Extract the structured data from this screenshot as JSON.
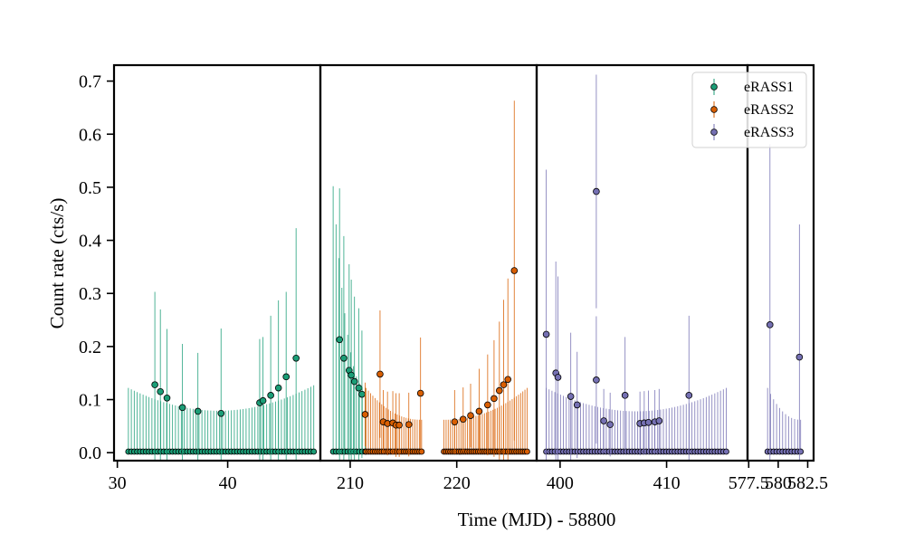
{
  "chart_data": {
    "type": "scatter",
    "title": "",
    "xlabel": "Time (MJD) - 58800",
    "ylabel": "Count rate (cts/s)",
    "ylim": [
      -0.015,
      0.73
    ],
    "yticks": [
      0.0,
      0.1,
      0.2,
      0.3,
      0.4,
      0.5,
      0.6,
      0.7
    ],
    "ytick_labels": [
      "0.0",
      "0.1",
      "0.2",
      "0.3",
      "0.4",
      "0.5",
      "0.6",
      "0.7"
    ],
    "grid": false,
    "legend_location": "top-right",
    "colors": {
      "eRASS1": "#1b9e77",
      "eRASS2": "#d95f02",
      "eRASS3": "#7570b3"
    },
    "panels": [
      {
        "xlim": [
          29.7,
          48.4
        ],
        "xticks": [
          30,
          40
        ],
        "xtick_labels": [
          "30",
          "40"
        ]
      },
      {
        "xlim": [
          207.2,
          227.5
        ],
        "xticks": [
          210,
          220
        ],
        "xtick_labels": [
          "210",
          "220"
        ]
      },
      {
        "xlim": [
          397.8,
          417.6
        ],
        "xticks": [
          400,
          410
        ],
        "xtick_labels": [
          "400",
          "410"
        ]
      },
      {
        "xlim": [
          577.4,
          583.0
        ],
        "xticks": [
          577.5,
          580,
          582.5
        ],
        "xtick_labels": [
          "577.5",
          "580",
          "582.5"
        ]
      }
    ],
    "series": [
      {
        "name": "eRASS1",
        "segments": [
          {
            "panel": 0,
            "x_start": 31.0,
            "x_end": 47.8,
            "n": 64,
            "y": 0.002,
            "err_start": 0.12,
            "err_min": 0.042,
            "err_end": 0.125
          },
          {
            "panel": 1,
            "x_start": 208.4,
            "x_end": 211.4,
            "n": 12,
            "y": 0.002,
            "err_start": 0.5,
            "err_min": 0.12,
            "err_end": 0.12
          }
        ],
        "points": [
          {
            "panel": 0,
            "x": 33.4,
            "y": 0.128,
            "err": 0.175
          },
          {
            "panel": 0,
            "x": 33.9,
            "y": 0.115,
            "err": 0.155
          },
          {
            "panel": 0,
            "x": 34.5,
            "y": 0.103,
            "err": 0.13
          },
          {
            "panel": 0,
            "x": 35.9,
            "y": 0.085,
            "err": 0.12
          },
          {
            "panel": 0,
            "x": 37.3,
            "y": 0.078,
            "err": 0.11
          },
          {
            "panel": 0,
            "x": 39.4,
            "y": 0.074,
            "err": 0.16
          },
          {
            "panel": 0,
            "x": 42.9,
            "y": 0.094,
            "err": 0.12
          },
          {
            "panel": 0,
            "x": 43.2,
            "y": 0.098,
            "err": 0.12
          },
          {
            "panel": 0,
            "x": 43.9,
            "y": 0.108,
            "err": 0.15
          },
          {
            "panel": 0,
            "x": 44.6,
            "y": 0.122,
            "err": 0.165
          },
          {
            "panel": 0,
            "x": 45.3,
            "y": 0.143,
            "err": 0.16
          },
          {
            "panel": 0,
            "x": 46.2,
            "y": 0.178,
            "err": 0.245
          },
          {
            "panel": 1,
            "x": 209.0,
            "y": 0.213,
            "err": 0.285
          },
          {
            "panel": 1,
            "x": 209.4,
            "y": 0.178,
            "err": 0.23
          },
          {
            "panel": 1,
            "x": 209.9,
            "y": 0.155,
            "err": 0.2
          },
          {
            "panel": 1,
            "x": 210.1,
            "y": 0.146,
            "err": 0.18
          },
          {
            "panel": 1,
            "x": 210.4,
            "y": 0.134,
            "err": 0.16
          },
          {
            "panel": 1,
            "x": 210.8,
            "y": 0.122,
            "err": 0.15
          },
          {
            "panel": 1,
            "x": 211.1,
            "y": 0.11,
            "err": 0.12
          }
        ]
      },
      {
        "name": "eRASS2",
        "segments": [
          {
            "panel": 1,
            "x_start": 211.5,
            "x_end": 216.7,
            "n": 26,
            "y": 0.002,
            "err_start": 0.12,
            "err_min": 0.06,
            "err_end": 0.06
          },
          {
            "panel": 1,
            "x_start": 218.8,
            "x_end": 226.6,
            "n": 40,
            "y": 0.002,
            "err_start": 0.06,
            "err_min": 0.06,
            "err_end": 0.12
          }
        ],
        "points": [
          {
            "panel": 1,
            "x": 211.4,
            "y": 0.072,
            "err": 0.06
          },
          {
            "panel": 1,
            "x": 212.8,
            "y": 0.148,
            "err": 0.12
          },
          {
            "panel": 1,
            "x": 213.1,
            "y": 0.058,
            "err": 0.06
          },
          {
            "panel": 1,
            "x": 213.5,
            "y": 0.055,
            "err": 0.06
          },
          {
            "panel": 1,
            "x": 214.0,
            "y": 0.056,
            "err": 0.06
          },
          {
            "panel": 1,
            "x": 214.3,
            "y": 0.052,
            "err": 0.06
          },
          {
            "panel": 1,
            "x": 214.6,
            "y": 0.052,
            "err": 0.06
          },
          {
            "panel": 1,
            "x": 215.5,
            "y": 0.053,
            "err": 0.06
          },
          {
            "panel": 1,
            "x": 216.6,
            "y": 0.112,
            "err": 0.105
          },
          {
            "panel": 1,
            "x": 219.8,
            "y": 0.058,
            "err": 0.06
          },
          {
            "panel": 1,
            "x": 220.6,
            "y": 0.063,
            "err": 0.06
          },
          {
            "panel": 1,
            "x": 221.3,
            "y": 0.07,
            "err": 0.06
          },
          {
            "panel": 1,
            "x": 222.1,
            "y": 0.078,
            "err": 0.08
          },
          {
            "panel": 1,
            "x": 222.9,
            "y": 0.09,
            "err": 0.095
          },
          {
            "panel": 1,
            "x": 223.5,
            "y": 0.102,
            "err": 0.11
          },
          {
            "panel": 1,
            "x": 224.0,
            "y": 0.117,
            "err": 0.13
          },
          {
            "panel": 1,
            "x": 224.4,
            "y": 0.128,
            "err": 0.16
          },
          {
            "panel": 1,
            "x": 224.8,
            "y": 0.138,
            "err": 0.19
          },
          {
            "panel": 1,
            "x": 225.4,
            "y": 0.343,
            "err": 0.32
          }
        ]
      },
      {
        "name": "eRASS3",
        "segments": [
          {
            "panel": 2,
            "x_start": 398.7,
            "x_end": 415.6,
            "n": 64,
            "y": 0.002,
            "err_start": 0.12,
            "err_min": 0.042,
            "err_end": 0.12
          },
          {
            "panel": 3,
            "x_start": 579.1,
            "x_end": 581.9,
            "n": 12,
            "y": 0.002,
            "err_start": 0.12,
            "err_min": 0.06,
            "err_end": 0.06
          }
        ],
        "points": [
          {
            "panel": 2,
            "x": 398.7,
            "y": 0.223,
            "err": 0.31
          },
          {
            "panel": 2,
            "x": 399.6,
            "y": 0.15,
            "err": 0.21
          },
          {
            "panel": 2,
            "x": 399.8,
            "y": 0.142,
            "err": 0.19
          },
          {
            "panel": 2,
            "x": 401.0,
            "y": 0.106,
            "err": 0.12
          },
          {
            "panel": 2,
            "x": 401.6,
            "y": 0.09,
            "err": 0.1
          },
          {
            "panel": 2,
            "x": 403.4,
            "y": 0.492,
            "err": 0.22
          },
          {
            "panel": 2,
            "x": 403.4,
            "y": 0.137,
            "err": 0.12
          },
          {
            "panel": 2,
            "x": 404.1,
            "y": 0.06,
            "err": 0.06
          },
          {
            "panel": 2,
            "x": 404.7,
            "y": 0.053,
            "err": 0.06
          },
          {
            "panel": 2,
            "x": 406.1,
            "y": 0.108,
            "err": 0.11
          },
          {
            "panel": 2,
            "x": 407.5,
            "y": 0.055,
            "err": 0.06
          },
          {
            "panel": 2,
            "x": 407.9,
            "y": 0.056,
            "err": 0.06
          },
          {
            "panel": 2,
            "x": 408.3,
            "y": 0.057,
            "err": 0.06
          },
          {
            "panel": 2,
            "x": 408.9,
            "y": 0.058,
            "err": 0.06
          },
          {
            "panel": 2,
            "x": 409.3,
            "y": 0.06,
            "err": 0.06
          },
          {
            "panel": 2,
            "x": 412.1,
            "y": 0.108,
            "err": 0.15
          },
          {
            "panel": 3,
            "x": 579.3,
            "y": 0.241,
            "err": 0.34
          },
          {
            "panel": 3,
            "x": 581.8,
            "y": 0.18,
            "err": 0.25
          }
        ]
      }
    ]
  }
}
